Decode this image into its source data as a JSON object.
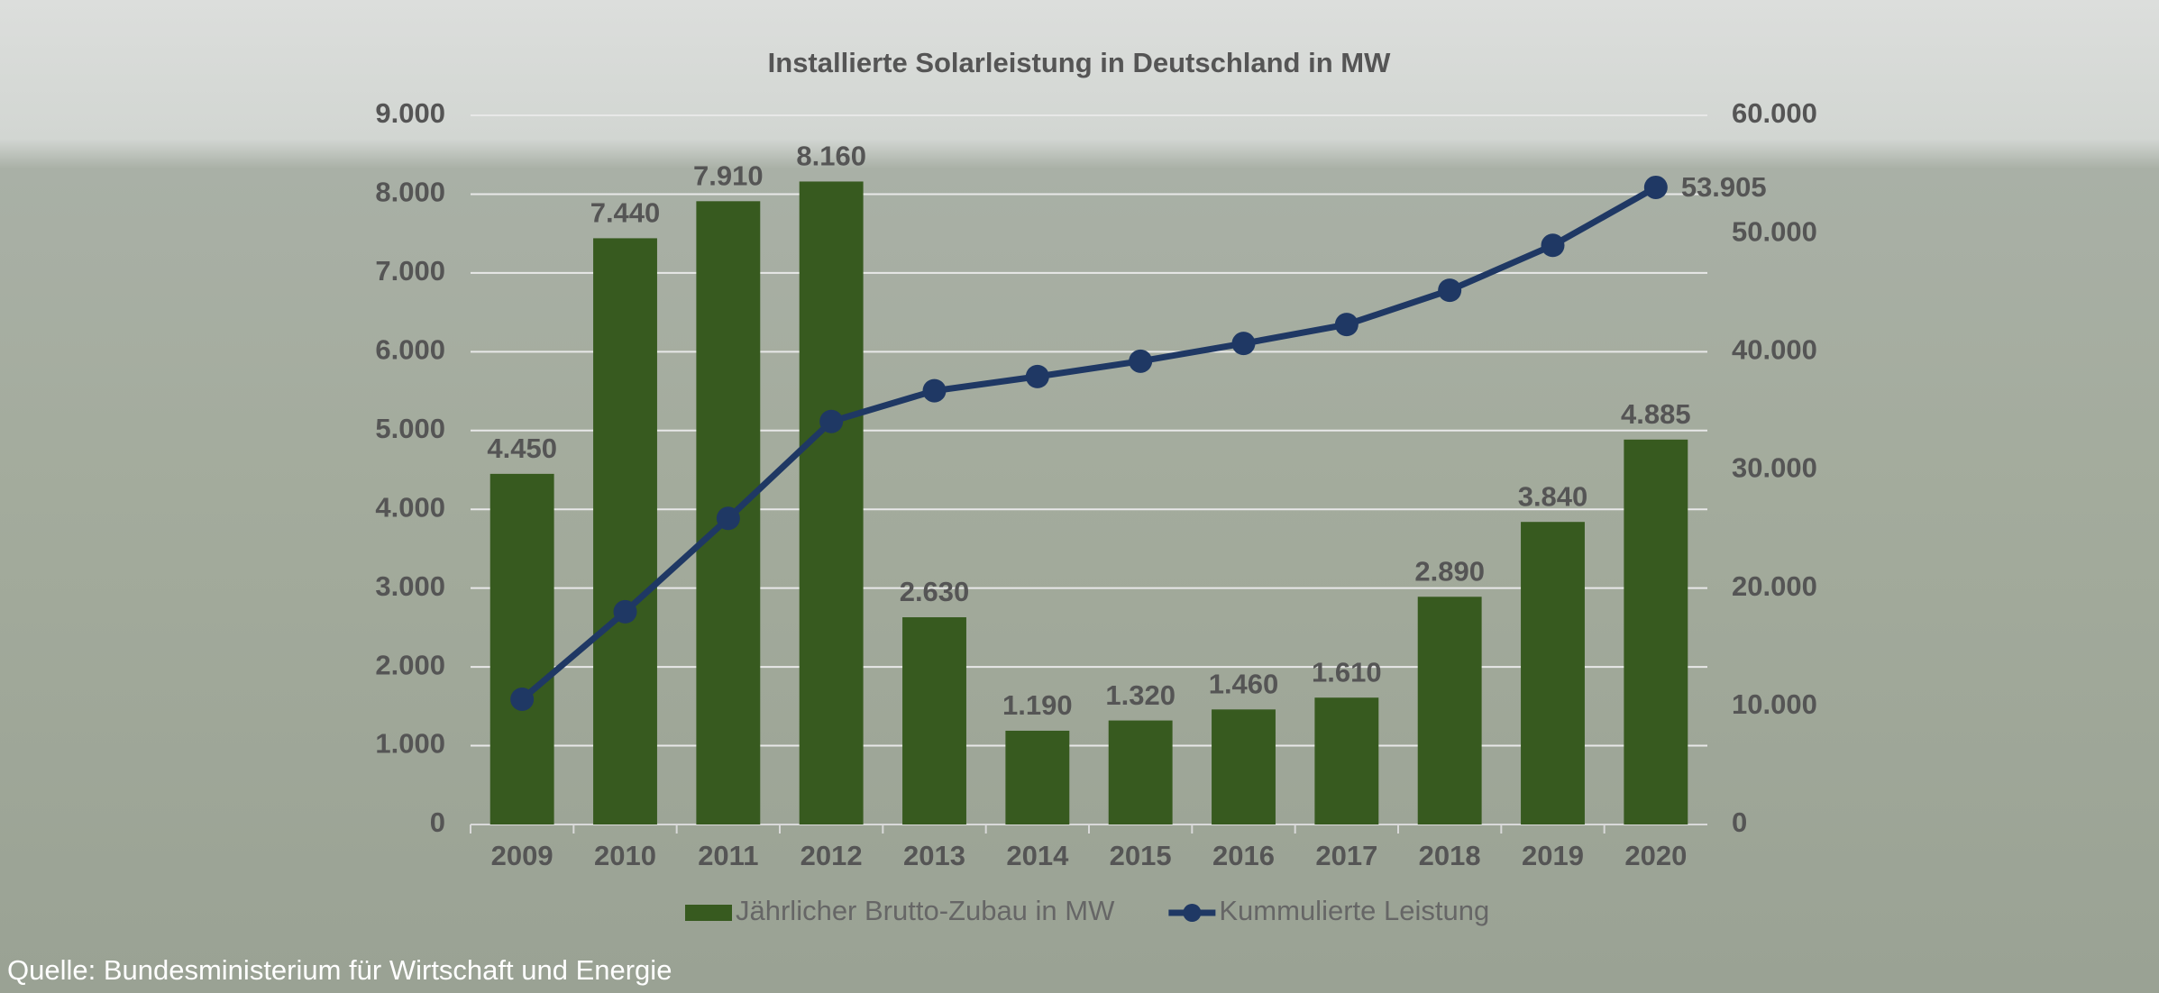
{
  "chart_data": {
    "type": "bar",
    "title": "Installierte Solarleistung in Deutschland in MW",
    "categories": [
      "2009",
      "2010",
      "2011",
      "2012",
      "2013",
      "2014",
      "2015",
      "2016",
      "2017",
      "2018",
      "2019",
      "2020"
    ],
    "series": [
      {
        "name": "Jährlicher Brutto-Zubau in MW",
        "type": "bar",
        "color": "#375a1f",
        "values": [
          4450,
          7440,
          7910,
          8160,
          2630,
          1190,
          1320,
          1460,
          1610,
          2890,
          3840,
          4885
        ],
        "value_labels": [
          "4.450",
          "7.440",
          "7.910",
          "8.160",
          "2.630",
          "1.190",
          "1.320",
          "1.460",
          "1.610",
          "2.890",
          "3.840",
          "4.885"
        ]
      },
      {
        "name": "Kummulierte Leistung",
        "type": "line",
        "axis": "y2",
        "color": "#1f3864",
        "values": [
          10600,
          18000,
          25900,
          34100,
          36700,
          37900,
          39200,
          40700,
          42300,
          45200,
          49000,
          53905
        ],
        "value_labels": [
          null,
          null,
          null,
          null,
          null,
          null,
          null,
          null,
          null,
          null,
          null,
          "53.905"
        ]
      }
    ],
    "ylim": [
      0,
      9000
    ],
    "yticks": [
      0,
      {
        "value": 1000,
        "label": "1.000"
      },
      {
        "value": 2000,
        "label": "2.000"
      },
      {
        "value": 3000,
        "label": "3.000"
      },
      {
        "value": 4000,
        "label": "4.000"
      },
      {
        "value": 5000,
        "label": "5.000"
      },
      {
        "value": 6000,
        "label": "6.000"
      },
      {
        "value": 7000,
        "label": "7.000"
      },
      {
        "value": 8000,
        "label": "8.000"
      },
      {
        "value": 9000,
        "label": "9.000"
      }
    ],
    "y2lim": [
      0,
      60000
    ],
    "y2ticks": [
      0,
      {
        "value": 10000,
        "label": "10.000"
      },
      {
        "value": 20000,
        "label": "20.000"
      },
      {
        "value": 30000,
        "label": "30.000"
      },
      {
        "value": 40000,
        "label": "40.000"
      },
      {
        "value": 50000,
        "label": "50.000"
      },
      {
        "value": 60000,
        "label": "60.000"
      }
    ],
    "grid": true,
    "legend": "bottom",
    "source": "Quelle:  Bundesministerium für Wirtschaft und Energie"
  }
}
